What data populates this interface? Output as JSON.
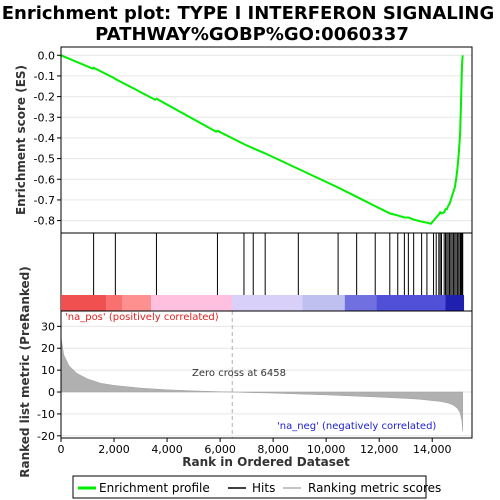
{
  "title_line1": "Enrichment plot: TYPE I INTERFERON SIGNALING",
  "title_line2": "PATHWAY%GOBP%GO:0060337",
  "colors": {
    "es_line": "#00ee00",
    "hit_line": "#000000",
    "metric_fill": "#b0b0b0",
    "pos_text": "#e02020",
    "neg_text": "#2020d0",
    "zero_line": "#b0b0b0"
  },
  "chart_data": {
    "type": "line",
    "n_genes": 15200,
    "es_panel": {
      "ylabel": "Enrichment score (ES)",
      "ylim": [
        -0.86,
        0.04
      ],
      "yticks": [
        0.0,
        -0.1,
        -0.2,
        -0.3,
        -0.4,
        -0.5,
        -0.6,
        -0.7,
        -0.8
      ],
      "ytick_labels": [
        "0.0",
        "-0.1",
        "-0.2",
        "-0.3",
        "-0.4",
        "-0.5",
        "-0.6",
        "-0.7",
        "-0.8"
      ],
      "series": [
        {
          "x": [
            0,
            1200,
            1230,
            2000,
            2050,
            3550,
            3600,
            5850,
            5900,
            6900,
            7250,
            7700,
            8950,
            10450,
            11150,
            11850,
            12400,
            12700,
            12950,
            13100,
            13300,
            13600,
            13800,
            13950,
            14050,
            14150,
            14250,
            14300,
            14350,
            14450,
            14500,
            14550,
            14600,
            14650,
            14700,
            14750,
            14800,
            14850,
            14900,
            14950,
            15000,
            15050,
            15080,
            15110,
            15130,
            15150
          ],
          "y": [
            0.0,
            -0.065,
            -0.06,
            -0.11,
            -0.115,
            -0.215,
            -0.21,
            -0.37,
            -0.365,
            -0.43,
            -0.45,
            -0.475,
            -0.55,
            -0.64,
            -0.685,
            -0.73,
            -0.765,
            -0.775,
            -0.785,
            -0.785,
            -0.795,
            -0.805,
            -0.81,
            -0.815,
            -0.8,
            -0.785,
            -0.77,
            -0.76,
            -0.765,
            -0.76,
            -0.745,
            -0.745,
            -0.73,
            -0.72,
            -0.7,
            -0.68,
            -0.66,
            -0.64,
            -0.6,
            -0.55,
            -0.48,
            -0.38,
            -0.25,
            -0.1,
            -0.03,
            0.0
          ]
        }
      ]
    },
    "hits": [
      1230,
      2050,
      3600,
      5900,
      6900,
      7250,
      7700,
      8950,
      10450,
      11150,
      11850,
      12400,
      12700,
      12950,
      13100,
      13300,
      13600,
      13800,
      14050,
      14150,
      14250,
      14300,
      14350,
      14450,
      14500,
      14550,
      14600,
      14650,
      14700,
      14750,
      14800,
      14850,
      14900,
      14950,
      15000,
      15050,
      15080,
      15110,
      15130,
      15150
    ],
    "metric_panel": {
      "ylabel": "Ranked list metric (PreRanked)",
      "ylim": [
        -21,
        37
      ],
      "yticks": [
        30,
        20,
        10,
        0,
        -10,
        -20
      ],
      "ytick_labels": [
        "30",
        "20",
        "10",
        "0",
        "-10",
        "-20"
      ],
      "x": [
        0,
        100,
        300,
        600,
        1000,
        1500,
        2000,
        3000,
        4000,
        5000,
        6000,
        6458,
        7000,
        8000,
        9000,
        10000,
        11000,
        12000,
        13000,
        13500,
        14000,
        14300,
        14600,
        14800,
        14950,
        15050,
        15120,
        15150
      ],
      "y": [
        25,
        17,
        12,
        8.5,
        6,
        4,
        3,
        1.8,
        1.0,
        0.5,
        0.15,
        0.0,
        -0.2,
        -0.5,
        -0.9,
        -1.3,
        -1.8,
        -2.3,
        -2.9,
        -3.3,
        -3.9,
        -4.3,
        -5.0,
        -6.0,
        -7.5,
        -9.5,
        -13,
        -18
      ]
    },
    "heatmap_segments": [
      {
        "from": 0,
        "to": 1700,
        "color": "#f05050"
      },
      {
        "from": 1700,
        "to": 2300,
        "color": "#f87070"
      },
      {
        "from": 2300,
        "to": 3400,
        "color": "#ff9090"
      },
      {
        "from": 3400,
        "to": 6450,
        "color": "#ffc0e0"
      },
      {
        "from": 6450,
        "to": 9100,
        "color": "#d8d0f8"
      },
      {
        "from": 9100,
        "to": 10700,
        "color": "#c0c0f0"
      },
      {
        "from": 10700,
        "to": 11900,
        "color": "#7070e0"
      },
      {
        "from": 11900,
        "to": 14500,
        "color": "#5050d8"
      },
      {
        "from": 14500,
        "to": 15200,
        "color": "#2020b0"
      }
    ],
    "xlabel": "Rank in Ordered Dataset",
    "xlim": [
      0,
      15500
    ],
    "xticks": [
      0,
      2000,
      4000,
      6000,
      8000,
      10000,
      12000,
      14000
    ],
    "xtick_labels": [
      "0",
      "2,000",
      "4,000",
      "6,000",
      "8,000",
      "10,000",
      "12,000",
      "14,000"
    ],
    "zero_cross": 6458,
    "annotations": {
      "pos": "'na_pos' (positively correlated)",
      "neg": "'na_neg' (negatively correlated)",
      "zero": "Zero cross at 6458"
    },
    "legend": {
      "placement": "bottom",
      "items": [
        "Enrichment profile",
        "Hits",
        "Ranking metric scores"
      ]
    }
  }
}
